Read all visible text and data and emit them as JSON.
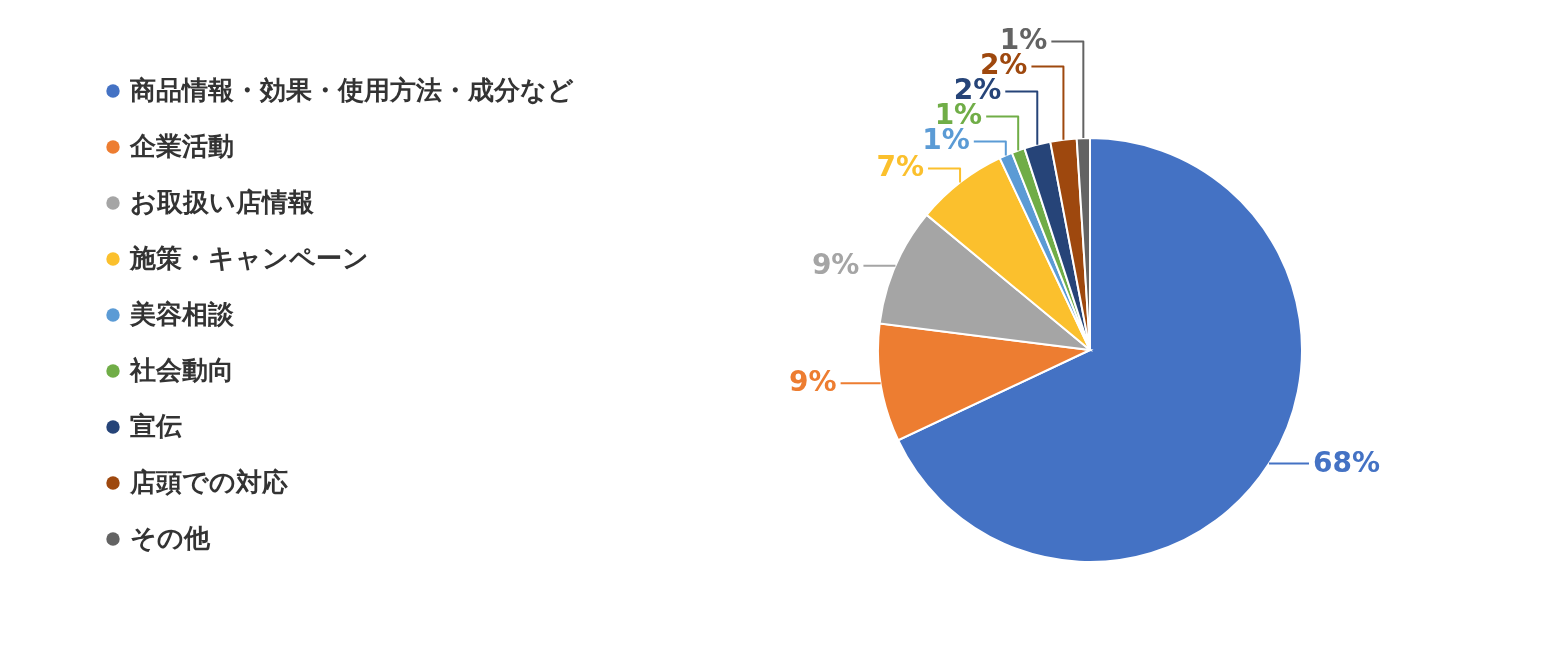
{
  "chart_data": {
    "type": "pie",
    "categories": [
      "商品情報・効果・使用方法・成分など",
      "企業活動",
      "お取扱い店情報",
      "施策・キャンペーン",
      "美容相談",
      "社会動向",
      "宣伝",
      "店頭での対応",
      "その他"
    ],
    "values": [
      68,
      9,
      9,
      7,
      1,
      1,
      2,
      2,
      1
    ],
    "colors": [
      "#4472c4",
      "#ed7d31",
      "#a5a5a5",
      "#fbc02d",
      "#5b9bd5",
      "#70ad47",
      "#264478",
      "#9e480e",
      "#636363"
    ],
    "value_labels": [
      "68%",
      "9%",
      "9%",
      "7%",
      "1%",
      "1%",
      "2%",
      "2%",
      "1%"
    ],
    "legend": "left"
  }
}
